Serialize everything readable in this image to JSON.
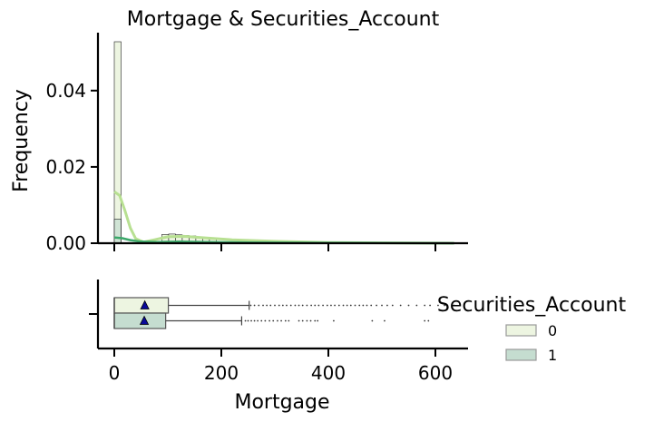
{
  "chart_data": [
    {
      "type": "histogram",
      "title": "Mortgage & Securities_Account",
      "xlabel": "",
      "ylabel": "Frequency",
      "xlim": [
        -30,
        660
      ],
      "ylim": [
        0,
        0.055
      ],
      "yticks": [
        0.0,
        0.02,
        0.04
      ],
      "ytick_labels": [
        "0.00",
        "0.02",
        "0.04"
      ],
      "xticks": [
        0,
        200,
        400,
        600
      ],
      "grid": false,
      "colors": {
        "group0": "#edf5e1",
        "group1": "#c5ddd0",
        "kde0": "#b8e092",
        "kde1": "#3ba86a",
        "edge": "#1e1e1e"
      },
      "bin_width": 12.7,
      "series": [
        {
          "name": "0",
          "bins": [
            [
              0,
              12.7,
              0.0528
            ],
            [
              88.9,
              101.6,
              0.0023
            ],
            [
              101.6,
              114.3,
              0.0024
            ],
            [
              114.3,
              127,
              0.0022
            ],
            [
              127,
              139.7,
              0.002
            ],
            [
              139.7,
              152.4,
              0.0019
            ],
            [
              152.4,
              165.1,
              0.0017
            ],
            [
              165.1,
              177.8,
              0.0014
            ],
            [
              177.8,
              190.5,
              0.0011
            ]
          ],
          "kde": [
            [
              0,
              0.0135
            ],
            [
              10,
              0.0125
            ],
            [
              20,
              0.0085
            ],
            [
              30,
              0.004
            ],
            [
              40,
              0.0012
            ],
            [
              55,
              0.0003
            ],
            [
              75,
              0.0009
            ],
            [
              100,
              0.0017
            ],
            [
              130,
              0.0018
            ],
            [
              170,
              0.0014
            ],
            [
              220,
              0.0009
            ],
            [
              300,
              0.0005
            ],
            [
              400,
              0.0002
            ],
            [
              500,
              0.0001
            ],
            [
              635,
              0.0
            ]
          ]
        },
        {
          "name": "1",
          "bins": [
            [
              0,
              12.7,
              0.0063
            ],
            [
              88.9,
              101.6,
              0.0005
            ],
            [
              101.6,
              114.3,
              0.0005
            ]
          ],
          "kde": [
            [
              0,
              0.0015
            ],
            [
              15,
              0.0013
            ],
            [
              30,
              0.0008
            ],
            [
              50,
              0.0004
            ],
            [
              80,
              0.0003
            ],
            [
              120,
              0.0004
            ],
            [
              170,
              0.0003
            ],
            [
              250,
              0.0002
            ],
            [
              400,
              0.0001
            ],
            [
              635,
              0.0
            ]
          ]
        }
      ]
    },
    {
      "type": "box",
      "xlabel": "Mortgage",
      "xlim": [
        -30,
        660
      ],
      "xticks": [
        0,
        200,
        400,
        600
      ],
      "xtick_labels": [
        "0",
        "200",
        "400",
        "600"
      ],
      "mean_marker": "triangle",
      "mean_color": "#0a0a99",
      "boxes": [
        {
          "name": "0",
          "q1": 0,
          "median": 0,
          "q3": 101,
          "whisker_low": 0,
          "whisker_high": 252,
          "mean": 57,
          "outliers": [
            255,
            262,
            270,
            278,
            285,
            292,
            300,
            308,
            315,
            322,
            330,
            338,
            345,
            352,
            360,
            368,
            375,
            382,
            390,
            398,
            405,
            412,
            420,
            428,
            435,
            442,
            450,
            458,
            465,
            472,
            480,
            490,
            500,
            510,
            520,
            535,
            550,
            565,
            580,
            590,
            605,
            617,
            635
          ]
        },
        {
          "name": "1",
          "q1": 0,
          "median": 0,
          "q3": 96,
          "whisker_low": 0,
          "whisker_high": 238,
          "mean": 56,
          "outliers": [
            245,
            250,
            256,
            262,
            268,
            275,
            282,
            290,
            297,
            305,
            312,
            320,
            326,
            345,
            352,
            360,
            367,
            375,
            380,
            410,
            482,
            505,
            580,
            587
          ]
        }
      ],
      "legend": {
        "title": "Securities_Account",
        "placement": "right",
        "entries": [
          "0",
          "1"
        ]
      }
    }
  ]
}
